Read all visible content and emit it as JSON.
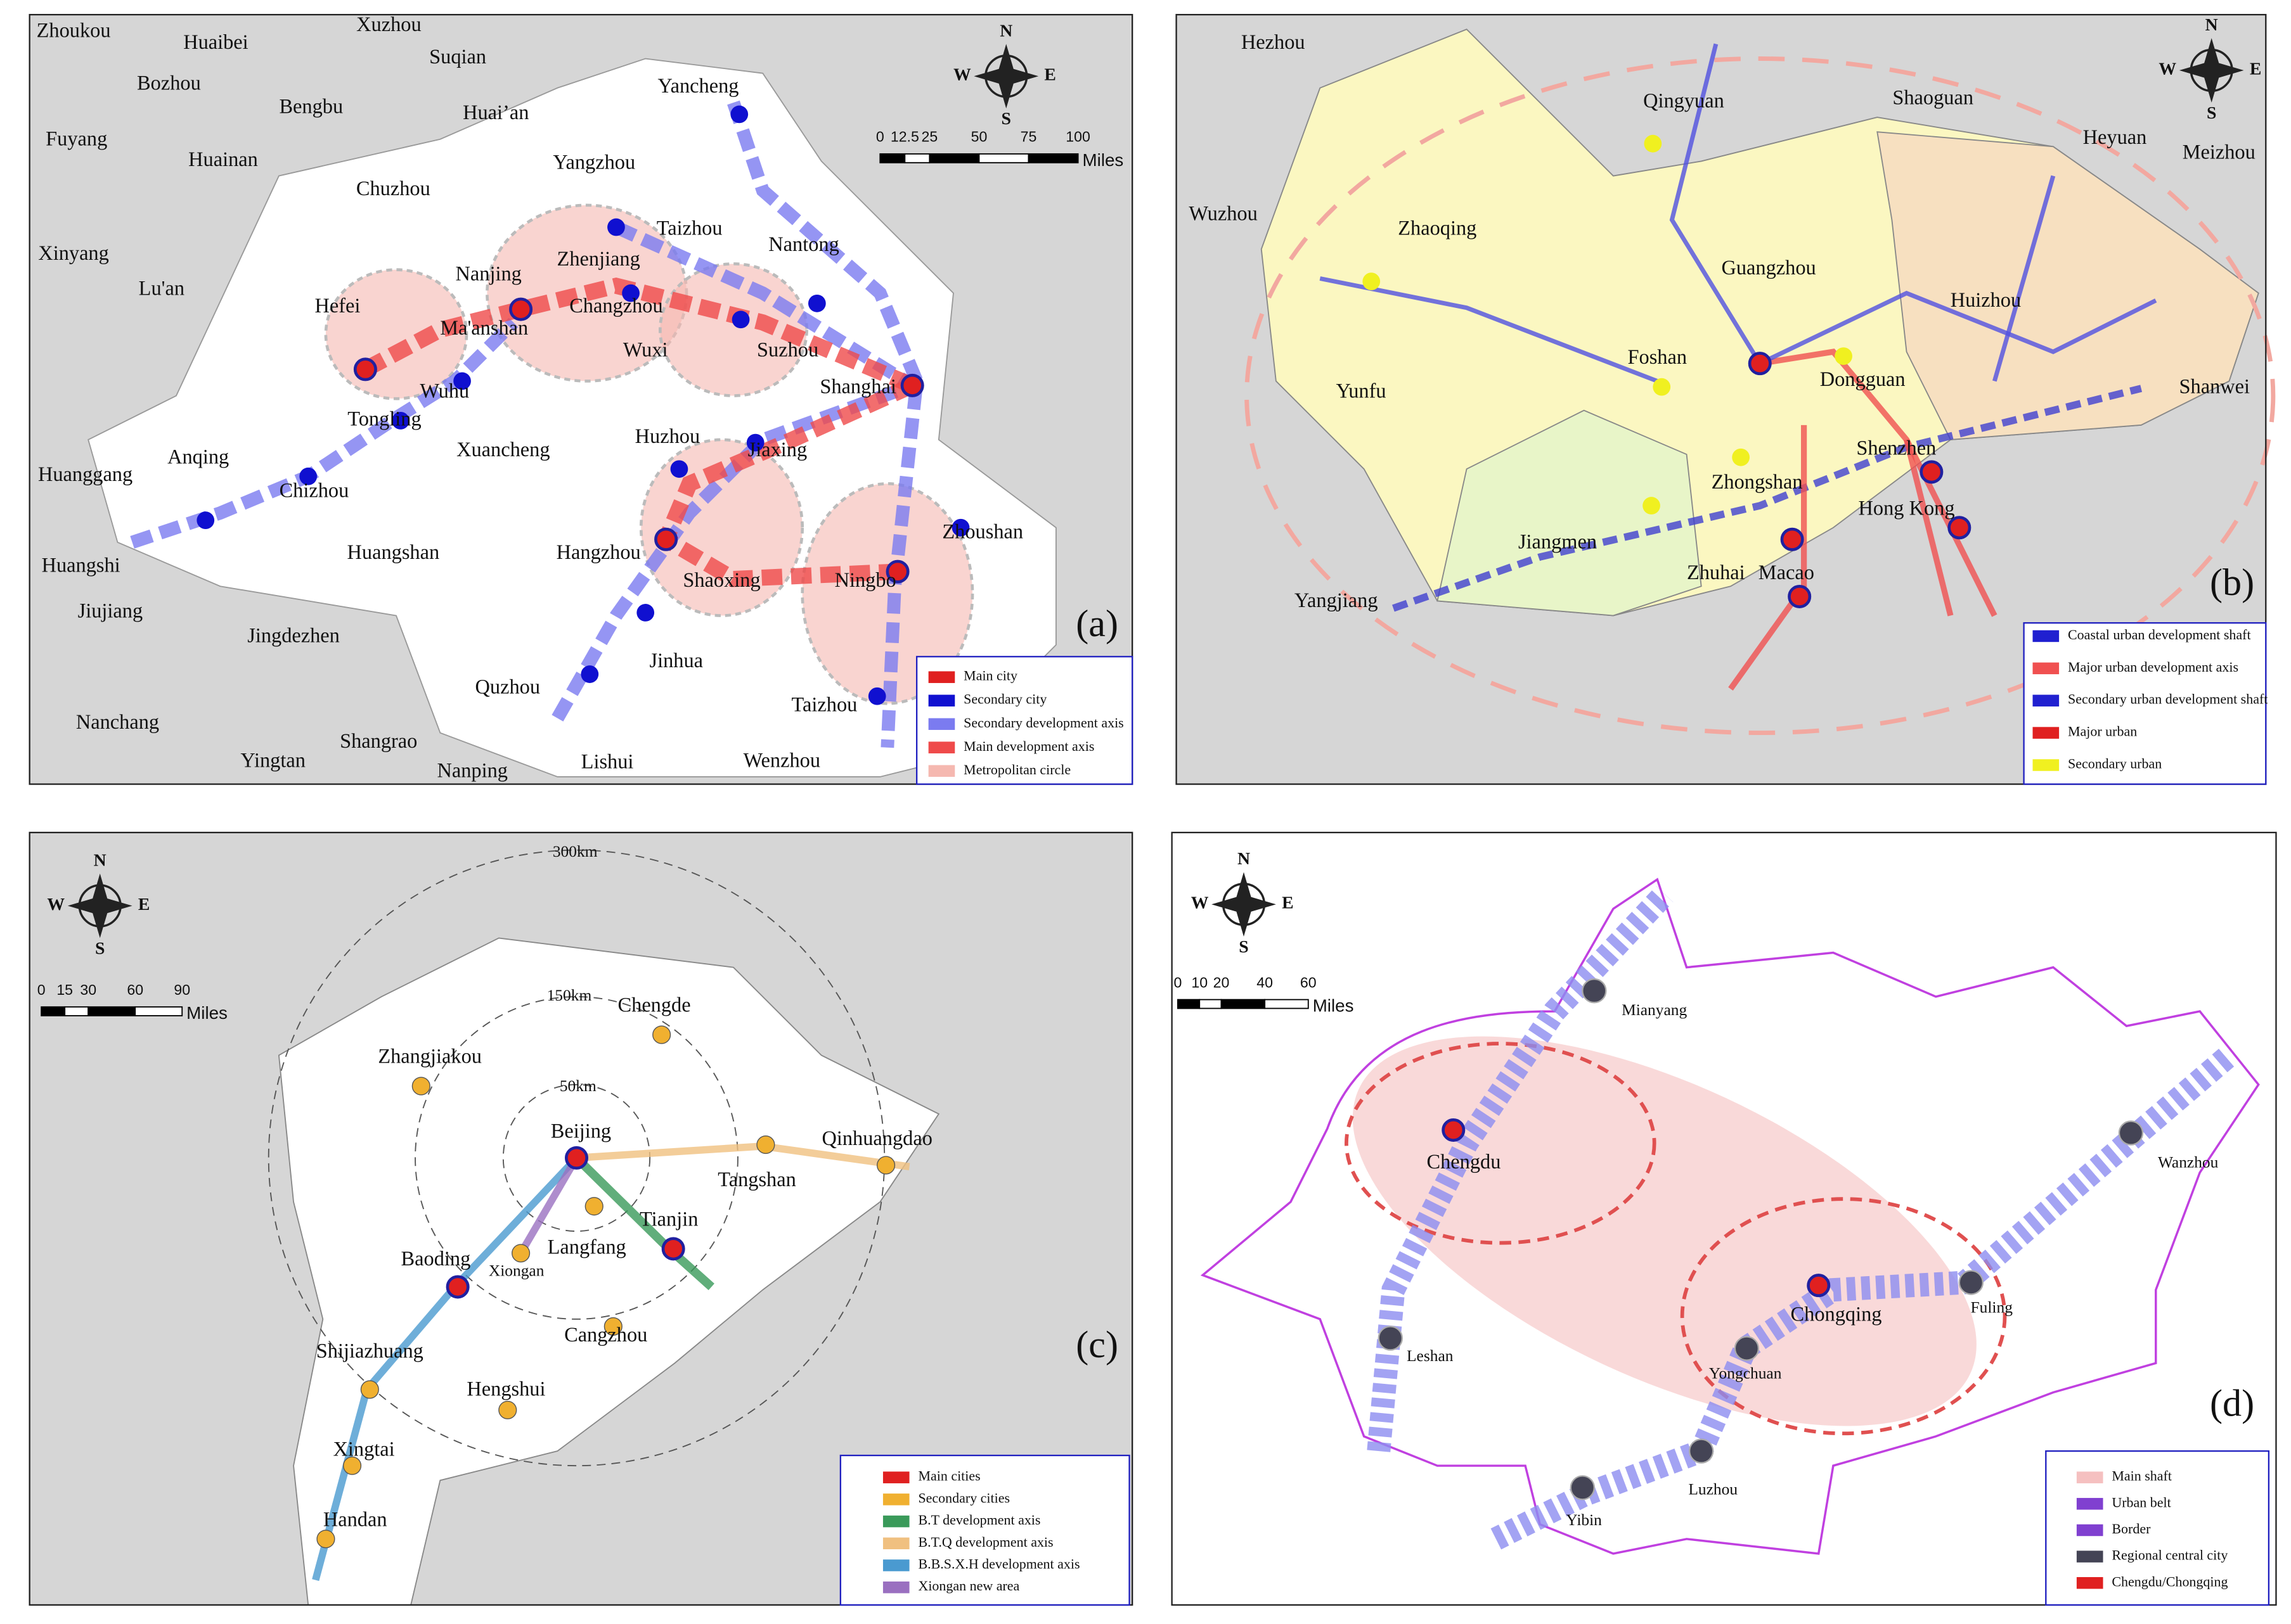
{
  "panels": [
    {
      "label": "(a)",
      "compass": [
        "N",
        "S",
        "W",
        "E"
      ],
      "scale": [
        0,
        12.5,
        25,
        50,
        75,
        100
      ],
      "scale_unit": "Miles",
      "cities": [
        "Zhoukou",
        "Huaibei",
        "Xuzhou",
        "Suqian",
        "Bozhou",
        "Bengbu",
        "Huai’an",
        "Fuyang",
        "Huainan",
        "Yangzhou",
        "Chuzhou",
        "Taizhou",
        "Nantong",
        "Xinyang",
        "Lu'an",
        "Nanjing",
        "Zhenjiang",
        "Changzhou",
        "Hefei",
        "Ma'anshan",
        "Wuxi",
        "Suzhou",
        "Shanghai",
        "Wuhu",
        "Tongling",
        "Anqing",
        "Xuancheng",
        "Huzhou",
        "Jiaxing",
        "Huanggang",
        "Chizhou",
        "Zhoushan",
        "Huangshi",
        "Huangshan",
        "Hangzhou",
        "Shaoxing",
        "Ningbo",
        "Jiujiang",
        "Jingdezhen",
        "Jinhua",
        "Quzhou",
        "Taizhou",
        "Nanchang",
        "Shangrao",
        "Yingtan",
        "Nanping",
        "Lishui",
        "Wenzhou",
        "Yancheng"
      ],
      "legend": [
        "Main city",
        "Secondary city",
        "Secondary development axis",
        "Main development axis",
        "Metropolitan circle"
      ]
    },
    {
      "label": "(b)",
      "compass": [
        "N",
        "S",
        "W",
        "E"
      ],
      "cities": [
        "Hezhou",
        "Qingyuan",
        "Shaoguan",
        "Heyuan",
        "Meizhou",
        "Wuzhou",
        "Zhaoqing",
        "Guangzhou",
        "Huizhou",
        "Foshan",
        "Dongguan",
        "Shanwei",
        "Yunfu",
        "Shenzhen",
        "Zhongshan",
        "Hong Kong",
        "Jiangmen",
        "Zhuhai",
        "Macao",
        "Yangjiang"
      ],
      "legend": [
        "Coastal urban development shaft",
        "Major urban development axis",
        "Secondary urban development shaft",
        "Major urban",
        "Secondary urban"
      ]
    },
    {
      "label": "(c)",
      "compass": [
        "N",
        "S",
        "W",
        "E"
      ],
      "scale": [
        0,
        15,
        30,
        60,
        90
      ],
      "scale_unit": "Miles",
      "cities": [
        "300km",
        "150km",
        "50km",
        "Chengde",
        "Zhangjiakou",
        "Beijing",
        "Qinhuangdao",
        "Tangshan",
        "Tianjin",
        "Langfang",
        "Baoding",
        "Xiongan",
        "Cangzhou",
        "Shijiazhuang",
        "Hengshui",
        "Xingtai",
        "Handan"
      ],
      "legend": [
        "Main cities",
        "Secondary cities",
        "B.T development axis",
        "B.T.Q development axis",
        "B.B.S.X.H development axis",
        "Xiongan new area"
      ]
    },
    {
      "label": "(d)",
      "compass": [
        "N",
        "S",
        "W",
        "E"
      ],
      "scale": [
        0,
        10,
        20,
        40,
        60
      ],
      "scale_unit": "Miles",
      "cities": [
        "Mianyang",
        "Chengdu",
        "Wanzhou",
        "Chongqing",
        "Fuling",
        "Leshan",
        "Yongchuan",
        "Luzhou",
        "Yibin"
      ],
      "legend": [
        "Main shaft",
        "Urban belt",
        "Border",
        "Regional central city",
        "Chengdu/Chongqing"
      ]
    }
  ]
}
